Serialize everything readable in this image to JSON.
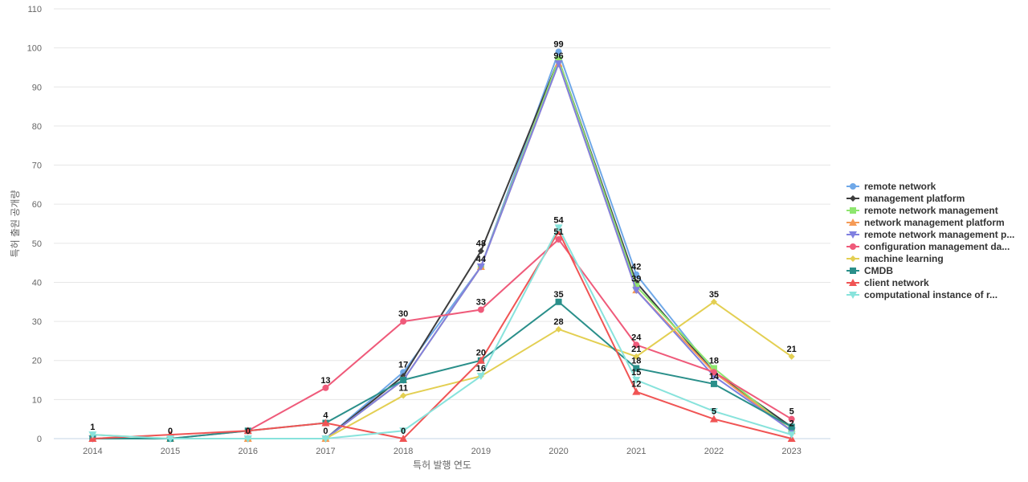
{
  "chart_data": {
    "type": "line",
    "title": "",
    "xlabel": "특허 발행 연도",
    "ylabel": "특허 출원 공개량",
    "x": [
      "2014",
      "2015",
      "2016",
      "2017",
      "2018",
      "2019",
      "2020",
      "2021",
      "2022",
      "2023"
    ],
    "ylim": [
      0,
      110
    ],
    "yticks": [
      0,
      10,
      20,
      30,
      40,
      50,
      60,
      70,
      80,
      90,
      100,
      110
    ],
    "grid": true,
    "legend_position": "right",
    "series": [
      {
        "name": "remote network",
        "color": "#6fa8e8",
        "marker": "circle",
        "values": [
          0,
          0,
          0,
          0,
          17,
          44,
          99,
          42,
          17,
          2
        ]
      },
      {
        "name": "management platform",
        "color": "#3d3d3d",
        "marker": "diamond",
        "values": [
          0,
          0,
          0,
          0,
          16,
          48,
          97,
          40,
          17,
          3
        ]
      },
      {
        "name": "remote network management",
        "color": "#8ee66e",
        "marker": "square",
        "values": [
          0,
          0,
          0,
          0,
          15,
          44,
          97,
          39,
          18,
          2
        ]
      },
      {
        "name": "network management platform",
        "color": "#f59a56",
        "marker": "triangle",
        "values": [
          0,
          0,
          0,
          0,
          15,
          44,
          96,
          38,
          17,
          2
        ]
      },
      {
        "name": "remote network management p...",
        "color": "#8080e0",
        "marker": "triangle-down",
        "values": [
          0,
          0,
          0,
          0,
          15,
          44,
          96,
          38,
          16,
          2
        ]
      },
      {
        "name": "configuration management da...",
        "color": "#ef5a7a",
        "marker": "circle",
        "values": [
          0,
          0,
          2,
          13,
          30,
          33,
          51,
          24,
          17,
          5
        ]
      },
      {
        "name": "machine learning",
        "color": "#e3cf52",
        "marker": "diamond",
        "values": [
          1,
          0,
          0,
          0,
          11,
          16,
          28,
          21,
          35,
          21
        ]
      },
      {
        "name": "CMDB",
        "color": "#2a8f8a",
        "marker": "square",
        "values": [
          0,
          0,
          2,
          4,
          15,
          20,
          35,
          18,
          14,
          3
        ]
      },
      {
        "name": "client network",
        "color": "#f05454",
        "marker": "triangle",
        "values": [
          0,
          1,
          2,
          4,
          0,
          20,
          53,
          12,
          5,
          0
        ]
      },
      {
        "name": "computational instance of r...",
        "color": "#88e3dc",
        "marker": "triangle-down",
        "values": [
          1,
          0,
          0,
          0,
          2,
          16,
          54,
          15,
          7,
          1
        ]
      }
    ],
    "data_labels": [
      {
        "x": "2014",
        "text": "1",
        "value": 1
      },
      {
        "x": "2015",
        "text": "0",
        "value": 0
      },
      {
        "x": "2016",
        "text": "0",
        "value": 0
      },
      {
        "x": "2017",
        "text": "13",
        "value": 13
      },
      {
        "x": "2017",
        "text": "4",
        "value": 4
      },
      {
        "x": "2017",
        "text": "0",
        "value": 0
      },
      {
        "x": "2018",
        "text": "30",
        "value": 30
      },
      {
        "x": "2018",
        "text": "17",
        "value": 17
      },
      {
        "x": "2018",
        "text": "11",
        "value": 11
      },
      {
        "x": "2018",
        "text": "0",
        "value": 0
      },
      {
        "x": "2019",
        "text": "48",
        "value": 48
      },
      {
        "x": "2019",
        "text": "44",
        "value": 44
      },
      {
        "x": "2019",
        "text": "33",
        "value": 33
      },
      {
        "x": "2019",
        "text": "20",
        "value": 20
      },
      {
        "x": "2019",
        "text": "16",
        "value": 16
      },
      {
        "x": "2020",
        "text": "99",
        "value": 99
      },
      {
        "x": "2020",
        "text": "96",
        "value": 96
      },
      {
        "x": "2020",
        "text": "54",
        "value": 54
      },
      {
        "x": "2020",
        "text": "51",
        "value": 51
      },
      {
        "x": "2020",
        "text": "35",
        "value": 35
      },
      {
        "x": "2020",
        "text": "28",
        "value": 28
      },
      {
        "x": "2021",
        "text": "42",
        "value": 42
      },
      {
        "x": "2021",
        "text": "39",
        "value": 39
      },
      {
        "x": "2021",
        "text": "24",
        "value": 24
      },
      {
        "x": "2021",
        "text": "21",
        "value": 21
      },
      {
        "x": "2021",
        "text": "18",
        "value": 18
      },
      {
        "x": "2021",
        "text": "15",
        "value": 15
      },
      {
        "x": "2021",
        "text": "12",
        "value": 12
      },
      {
        "x": "2022",
        "text": "35",
        "value": 35
      },
      {
        "x": "2022",
        "text": "18",
        "value": 18
      },
      {
        "x": "2022",
        "text": "14",
        "value": 14
      },
      {
        "x": "2022",
        "text": "5",
        "value": 5
      },
      {
        "x": "2023",
        "text": "21",
        "value": 21
      },
      {
        "x": "2023",
        "text": "5",
        "value": 5
      },
      {
        "x": "2023",
        "text": "2",
        "value": 2
      }
    ]
  }
}
